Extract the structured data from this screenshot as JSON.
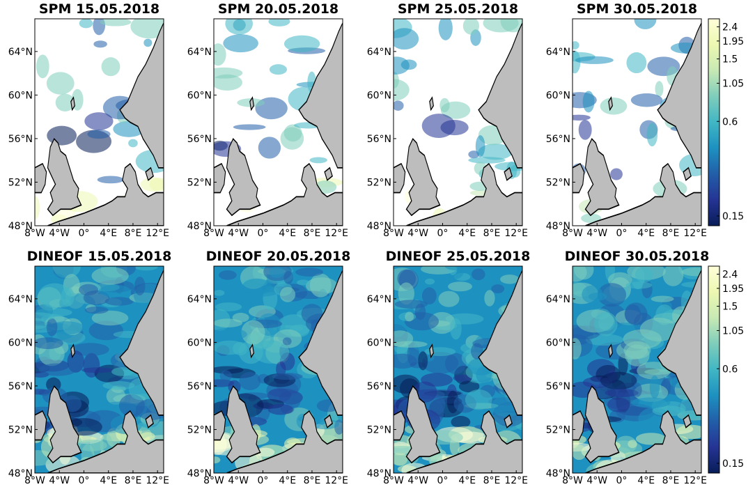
{
  "panels": [
    {
      "title": "SPM 15.05.2018",
      "product": "SPM",
      "date": "15.05.2018"
    },
    {
      "title": "SPM 20.05.2018",
      "product": "SPM",
      "date": "20.05.2018"
    },
    {
      "title": "SPM 25.05.2018",
      "product": "SPM",
      "date": "25.05.2018"
    },
    {
      "title": "SPM 30.05.2018",
      "product": "SPM",
      "date": "30.05.2018"
    },
    {
      "title": "DINEOF 15.05.2018",
      "product": "DINEOF",
      "date": "15.05.2018"
    },
    {
      "title": "DINEOF 20.05.2018",
      "product": "DINEOF",
      "date": "20.05.2018"
    },
    {
      "title": "DINEOF 25.05.2018",
      "product": "DINEOF",
      "date": "25.05.2018"
    },
    {
      "title": "DINEOF 30.05.2018",
      "product": "DINEOF",
      "date": "30.05.2018"
    }
  ],
  "map_extent": {
    "lon": [
      -8,
      13
    ],
    "lat": [
      48,
      67
    ]
  },
  "lat_ticks": [
    {
      "value": 48,
      "label": "48°N"
    },
    {
      "value": 52,
      "label": "52°N"
    },
    {
      "value": 56,
      "label": "56°N"
    },
    {
      "value": 60,
      "label": "60°N"
    },
    {
      "value": 64,
      "label": "64°N"
    }
  ],
  "lon_ticks": [
    {
      "value": -8,
      "label": "8°W"
    },
    {
      "value": -4,
      "label": "4°W"
    },
    {
      "value": 0,
      "label": "0°"
    },
    {
      "value": 4,
      "label": "4°E"
    },
    {
      "value": 8,
      "label": "8°E"
    },
    {
      "value": 12,
      "label": "12°E"
    }
  ],
  "colorbar": {
    "scale": "log",
    "range": [
      0.13,
      2.7
    ],
    "ticks": [
      {
        "value": 0.15,
        "label": "0.15"
      },
      {
        "value": 0.6,
        "label": "0.6"
      },
      {
        "value": 1.05,
        "label": "1.05"
      },
      {
        "value": 1.5,
        "label": "1.5"
      },
      {
        "value": 1.95,
        "label": "1.95"
      },
      {
        "value": 2.4,
        "label": "2.4"
      }
    ],
    "colormap": [
      "#081d58",
      "#253494",
      "#225ea8",
      "#1d91c0",
      "#41b6c4",
      "#7fcdbb",
      "#c7e9b4",
      "#edf8b1",
      "#ffffd9"
    ]
  },
  "colors": {
    "land": "#bdbdbd",
    "missing": "#ffffff",
    "coast": "#000000"
  }
}
